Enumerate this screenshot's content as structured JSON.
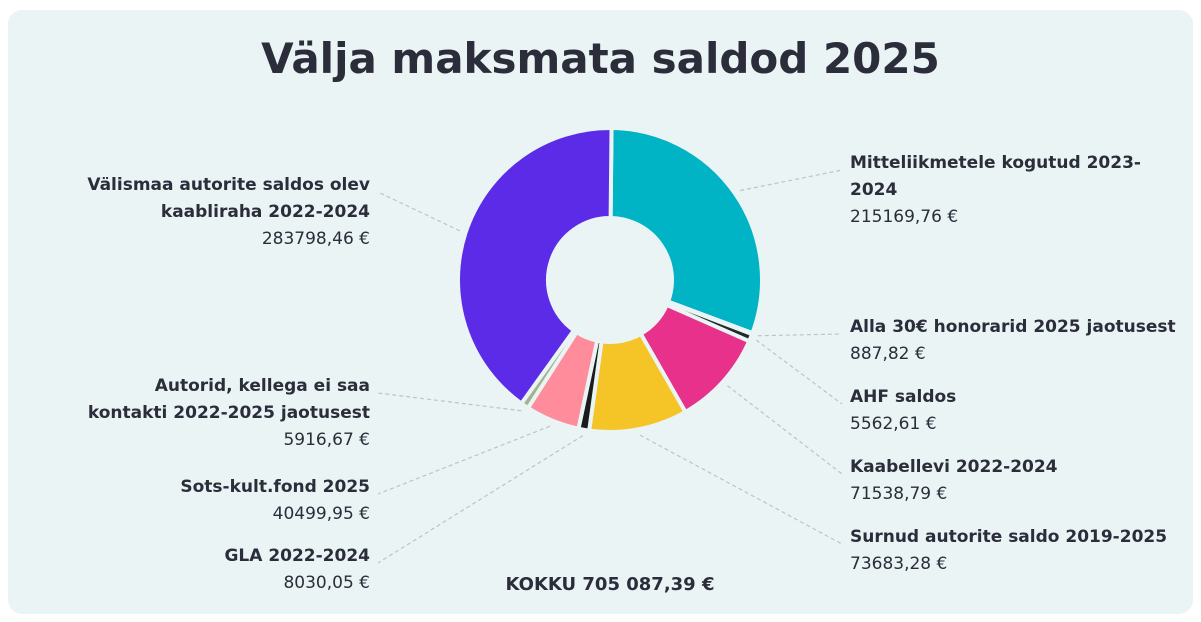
{
  "chart_data": {
    "type": "pie",
    "title": "Välja maksmata saldod 2025",
    "categories": [
      "Mitteliikmetele kogutud 2023-2024",
      "Alla 30€ honorarid 2025 jaotusest",
      "AHF saldos",
      "Kaabellevi 2022-2024",
      "Surnud autorite saldo 2019-2025",
      "GLA 2022-2024",
      "Sots-kult.fond 2025",
      "Autorid, kellega ei saa kontakti 2022-2025 jaotusest",
      "Välismaa autorite saldos olev kaabliraha 2022-2024"
    ],
    "values": [
      215169.76,
      887.82,
      5562.61,
      71538.79,
      73683.28,
      8030.05,
      40499.95,
      5916.67,
      283798.46
    ],
    "value_labels": [
      "215169,76 €",
      "887,82 €",
      "5562,61 €",
      "71538,79 €",
      "73683,28 €",
      "8030,05 €",
      "40499,95 €",
      "5916,67 €",
      "283798,46 €"
    ],
    "colors": [
      "#00b4c5",
      "#9fb8b4",
      "#1e2b2b",
      "#e8318a",
      "#f5c527",
      "#1b1b1b",
      "#ff8c9a",
      "#a3b38f",
      "#5b2be8"
    ],
    "annotation": "KOKKU 705 087,39 €"
  }
}
